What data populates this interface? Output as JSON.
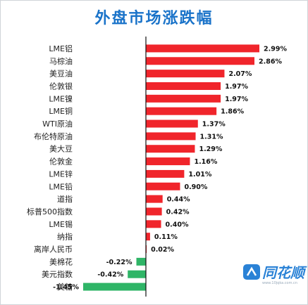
{
  "chart_data": {
    "type": "bar",
    "orientation": "horizontal",
    "title": "外盘市场涨跌幅",
    "categories": [
      "LME铝",
      "马棕油",
      "美豆油",
      "伦敦银",
      "LME镍",
      "LME铜",
      "WTI原油",
      "布伦特原油",
      "美大豆",
      "伦敦金",
      "LME锌",
      "LME铅",
      "道指",
      "标普500指数",
      "LME锡",
      "纳指",
      "离岸人民币",
      "美棉花",
      "美元指数",
      "美糖"
    ],
    "values": [
      2.99,
      2.86,
      2.07,
      1.97,
      1.97,
      1.86,
      1.37,
      1.31,
      1.29,
      1.16,
      1.01,
      0.9,
      0.44,
      0.42,
      0.4,
      0.11,
      0.02,
      -0.22,
      -0.42,
      -1.45
    ],
    "value_labels": [
      "2.99%",
      "2.86%",
      "2.07%",
      "1.97%",
      "1.97%",
      "1.86%",
      "1.37%",
      "1.31%",
      "1.29%",
      "1.16%",
      "1.01%",
      "0.90%",
      "0.44%",
      "0.42%",
      "0.40%",
      "0.11%",
      "0.02%",
      "-0.22%",
      "-0.42%",
      "-1.45%"
    ],
    "xlim": [
      -1.45,
      2.99
    ],
    "colors": {
      "positive": "#f0252b",
      "negative": "#2fb567",
      "axis": "#111111",
      "title": "#1a73c9"
    },
    "grid": false,
    "legend": "none"
  },
  "watermark": {
    "text": "同花顺",
    "url": "www.10jqka.com.cn"
  }
}
